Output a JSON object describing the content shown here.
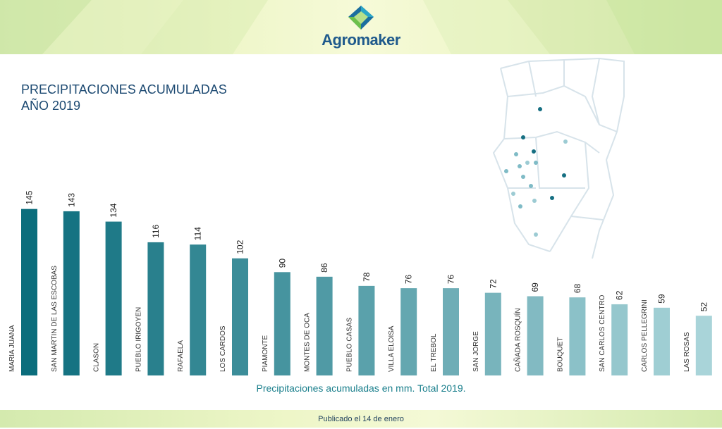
{
  "brand": {
    "name": "Agromaker"
  },
  "title": {
    "line1": "PRECIPITACIONES ACUMULADAS",
    "line2": "AÑO 2019"
  },
  "caption": "Precipitaciones acumuladas en mm. Total 2019.",
  "footer": "Publicado el 14 de enero",
  "colors": {
    "title": "#1d4a72",
    "caption": "#1a7f8c",
    "bar_darkest": "#0b6d7c",
    "bar_lightest": "#a9d4d9"
  },
  "chart_data": {
    "type": "bar",
    "categories": [
      "MARIA JUANA",
      "SAN MARTIN DE LAS ESCOBAS",
      "CLASON",
      "PUEBLO IRIGOYEN",
      "RAFAELA",
      "LOS CARDOS",
      "PIAMONTE",
      "MONTES DE OCA",
      "PUEBLO CASAS",
      "VILLA ELOISA",
      "EL TREBOL",
      "SAN JORGE",
      "CAÑADA ROSQUÍN",
      "BOUQUET",
      "SAN CARLOS CENTRO",
      "CARLOS PELLEGRINI",
      "LAS ROSAS"
    ],
    "values": [
      145,
      143,
      134,
      116,
      114,
      102,
      90,
      86,
      78,
      76,
      76,
      72,
      69,
      68,
      62,
      59,
      52
    ],
    "value_labels": [
      "145",
      "143",
      "134",
      "116",
      "114",
      "102",
      "90",
      "86",
      "78",
      "76",
      "76",
      "72",
      "69",
      "68",
      "62",
      "59",
      "52"
    ],
    "ylim": [
      0,
      160
    ],
    "grid": false,
    "title": "PRECIPITACIONES ACUMULADAS AÑO 2019",
    "xlabel": "Precipitaciones acumuladas en mm. Total 2019.",
    "ylabel": ""
  }
}
